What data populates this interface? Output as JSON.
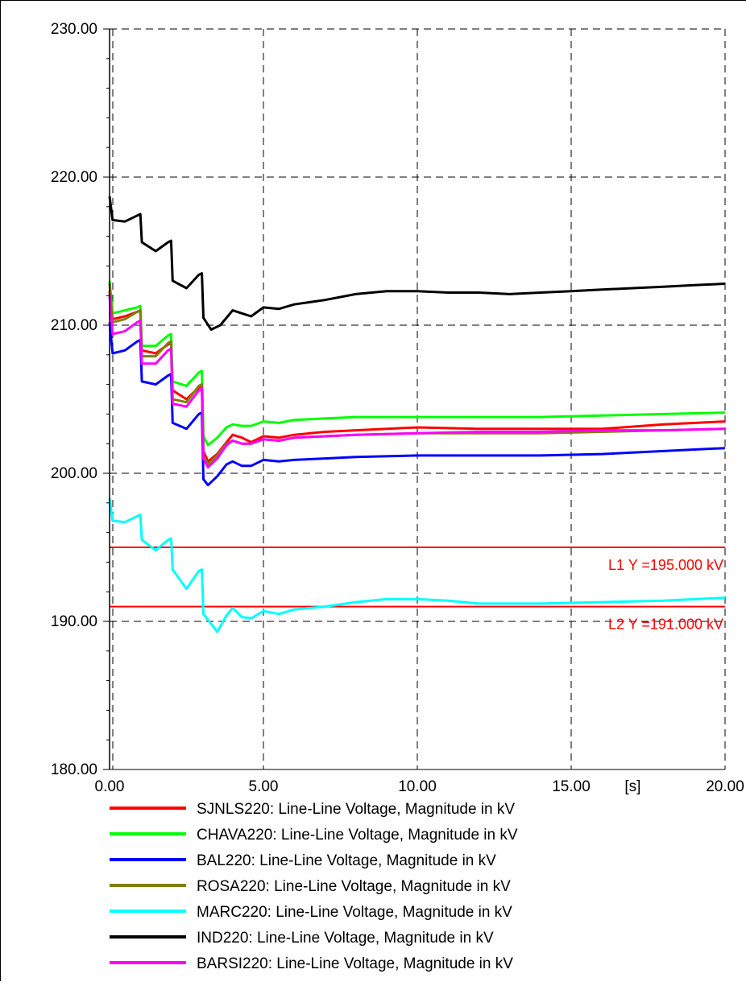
{
  "chart_data": {
    "type": "line",
    "xlabel": "",
    "x_unit_label": "[s]",
    "ylabel": "",
    "xlim": [
      0,
      20
    ],
    "ylim": [
      180,
      230
    ],
    "grid": true,
    "legend_position": "bottom",
    "x_ticks": [
      "0.00",
      "5.00",
      "10.00",
      "15.00",
      "20.00"
    ],
    "y_ticks": [
      "180.00",
      "190.00",
      "200.00",
      "210.00",
      "220.00",
      "230.00"
    ],
    "reference_lines": [
      {
        "y": 195,
        "label": "L1 Y =195.000 kV",
        "color": "#ff0000"
      },
      {
        "y": 191,
        "label": "L2 Y =191.000 kV",
        "color": "#ff0000"
      }
    ],
    "series": [
      {
        "name": "SJNLS220: Line-Line Voltage, Magnitude in kV",
        "color": "#ff0000",
        "points": [
          [
            0,
            212.3
          ],
          [
            0.1,
            210.4
          ],
          [
            0.5,
            210.6
          ],
          [
            0.9,
            210.9
          ],
          [
            1.0,
            211.0
          ],
          [
            1.05,
            208.3
          ],
          [
            1.5,
            208.1
          ],
          [
            1.9,
            208.7
          ],
          [
            2.0,
            208.8
          ],
          [
            2.05,
            205.6
          ],
          [
            2.5,
            205.0
          ],
          [
            2.9,
            205.8
          ],
          [
            3.0,
            205.9
          ],
          [
            3.05,
            201.5
          ],
          [
            3.2,
            200.8
          ],
          [
            3.5,
            201.3
          ],
          [
            3.8,
            202.1
          ],
          [
            4.0,
            202.6
          ],
          [
            4.3,
            202.4
          ],
          [
            4.6,
            202.1
          ],
          [
            5.0,
            202.5
          ],
          [
            5.5,
            202.4
          ],
          [
            6.0,
            202.6
          ],
          [
            7.0,
            202.8
          ],
          [
            8.0,
            202.9
          ],
          [
            10.0,
            203.1
          ],
          [
            12.0,
            203.0
          ],
          [
            14.0,
            203.0
          ],
          [
            16.0,
            203.0
          ],
          [
            18.0,
            203.3
          ],
          [
            20.0,
            203.5
          ]
        ]
      },
      {
        "name": "CHAVA220: Line-Line Voltage, Magnitude in kV",
        "color": "#00ff00",
        "points": [
          [
            0,
            213.0
          ],
          [
            0.1,
            210.8
          ],
          [
            0.5,
            211.0
          ],
          [
            0.9,
            211.2
          ],
          [
            1.0,
            211.3
          ],
          [
            1.05,
            208.6
          ],
          [
            1.5,
            208.6
          ],
          [
            1.9,
            209.3
          ],
          [
            2.0,
            209.4
          ],
          [
            2.05,
            206.2
          ],
          [
            2.5,
            205.9
          ],
          [
            2.9,
            206.8
          ],
          [
            3.0,
            206.9
          ],
          [
            3.05,
            202.5
          ],
          [
            3.2,
            201.9
          ],
          [
            3.5,
            202.4
          ],
          [
            3.8,
            203.1
          ],
          [
            4.0,
            203.3
          ],
          [
            4.3,
            203.2
          ],
          [
            4.6,
            203.2
          ],
          [
            5.0,
            203.5
          ],
          [
            5.5,
            203.4
          ],
          [
            6.0,
            203.6
          ],
          [
            7.0,
            203.7
          ],
          [
            8.0,
            203.8
          ],
          [
            10.0,
            203.8
          ],
          [
            12.0,
            203.8
          ],
          [
            14.0,
            203.8
          ],
          [
            16.0,
            203.9
          ],
          [
            18.0,
            204.0
          ],
          [
            20.0,
            204.1
          ]
        ]
      },
      {
        "name": "BAL220: Line-Line Voltage, Magnitude in kV",
        "color": "#0000ff",
        "points": [
          [
            0,
            210.2
          ],
          [
            0.1,
            208.1
          ],
          [
            0.5,
            208.3
          ],
          [
            0.9,
            208.9
          ],
          [
            1.0,
            209.0
          ],
          [
            1.05,
            206.2
          ],
          [
            1.5,
            206.0
          ],
          [
            1.9,
            206.6
          ],
          [
            2.0,
            206.7
          ],
          [
            2.05,
            203.4
          ],
          [
            2.5,
            203.0
          ],
          [
            2.9,
            204.0
          ],
          [
            3.0,
            204.1
          ],
          [
            3.05,
            199.6
          ],
          [
            3.2,
            199.2
          ],
          [
            3.5,
            199.8
          ],
          [
            3.8,
            200.6
          ],
          [
            4.0,
            200.8
          ],
          [
            4.3,
            200.5
          ],
          [
            4.6,
            200.5
          ],
          [
            5.0,
            200.9
          ],
          [
            5.5,
            200.8
          ],
          [
            6.0,
            200.9
          ],
          [
            7.0,
            201.0
          ],
          [
            8.0,
            201.1
          ],
          [
            10.0,
            201.2
          ],
          [
            12.0,
            201.2
          ],
          [
            14.0,
            201.2
          ],
          [
            16.0,
            201.3
          ],
          [
            18.0,
            201.5
          ],
          [
            20.0,
            201.7
          ]
        ]
      },
      {
        "name": "ROSA220: Line-Line Voltage, Magnitude in kV",
        "color": "#808000",
        "points": [
          [
            0,
            212.8
          ],
          [
            0.1,
            210.2
          ],
          [
            0.5,
            210.4
          ],
          [
            0.9,
            210.9
          ],
          [
            1.0,
            211.0
          ],
          [
            1.05,
            207.9
          ],
          [
            1.5,
            207.9
          ],
          [
            1.9,
            208.8
          ],
          [
            2.0,
            208.9
          ],
          [
            2.05,
            205.0
          ],
          [
            2.5,
            204.8
          ],
          [
            2.9,
            205.9
          ],
          [
            3.0,
            206.0
          ],
          [
            3.05,
            201.2
          ],
          [
            3.2,
            200.6
          ],
          [
            3.5,
            201.2
          ],
          [
            3.8,
            202.0
          ],
          [
            4.0,
            202.2
          ],
          [
            4.3,
            202.0
          ],
          [
            4.6,
            202.0
          ],
          [
            5.0,
            202.3
          ],
          [
            5.5,
            202.2
          ],
          [
            6.0,
            202.4
          ],
          [
            7.0,
            202.5
          ],
          [
            8.0,
            202.6
          ],
          [
            10.0,
            202.7
          ],
          [
            12.0,
            202.7
          ],
          [
            14.0,
            202.7
          ],
          [
            16.0,
            202.8
          ],
          [
            18.0,
            202.9
          ],
          [
            20.0,
            203.0
          ]
        ]
      },
      {
        "name": "MARC220: Line-Line Voltage, Magnitude in kV",
        "color": "#00ffff",
        "points": [
          [
            0,
            198.3
          ],
          [
            0.1,
            196.8
          ],
          [
            0.5,
            196.7
          ],
          [
            0.9,
            197.1
          ],
          [
            1.0,
            197.2
          ],
          [
            1.05,
            195.5
          ],
          [
            1.5,
            194.8
          ],
          [
            1.9,
            195.5
          ],
          [
            2.0,
            195.6
          ],
          [
            2.05,
            193.5
          ],
          [
            2.5,
            192.2
          ],
          [
            2.9,
            193.4
          ],
          [
            3.0,
            193.5
          ],
          [
            3.05,
            190.5
          ],
          [
            3.5,
            189.3
          ],
          [
            3.8,
            190.4
          ],
          [
            4.0,
            190.9
          ],
          [
            4.3,
            190.3
          ],
          [
            4.6,
            190.2
          ],
          [
            5.0,
            190.7
          ],
          [
            5.5,
            190.5
          ],
          [
            6.0,
            190.8
          ],
          [
            7.0,
            191.0
          ],
          [
            8.0,
            191.3
          ],
          [
            9.0,
            191.5
          ],
          [
            10.0,
            191.5
          ],
          [
            11.0,
            191.4
          ],
          [
            12.0,
            191.2
          ],
          [
            13.0,
            191.2
          ],
          [
            14.0,
            191.2
          ],
          [
            16.0,
            191.3
          ],
          [
            18.0,
            191.4
          ],
          [
            20.0,
            191.6
          ]
        ]
      },
      {
        "name": "IND220: Line-Line Voltage, Magnitude in kV",
        "color": "#000000",
        "points": [
          [
            0,
            218.7
          ],
          [
            0.1,
            217.1
          ],
          [
            0.5,
            217.0
          ],
          [
            0.9,
            217.4
          ],
          [
            1.0,
            217.5
          ],
          [
            1.05,
            215.6
          ],
          [
            1.5,
            215.0
          ],
          [
            1.9,
            215.6
          ],
          [
            2.0,
            215.7
          ],
          [
            2.05,
            213.0
          ],
          [
            2.5,
            212.5
          ],
          [
            2.9,
            213.4
          ],
          [
            3.0,
            213.5
          ],
          [
            3.05,
            210.5
          ],
          [
            3.3,
            209.7
          ],
          [
            3.6,
            210.0
          ],
          [
            4.0,
            211.0
          ],
          [
            4.3,
            210.8
          ],
          [
            4.6,
            210.6
          ],
          [
            5.0,
            211.2
          ],
          [
            5.5,
            211.1
          ],
          [
            6.0,
            211.4
          ],
          [
            7.0,
            211.7
          ],
          [
            8.0,
            212.1
          ],
          [
            9.0,
            212.3
          ],
          [
            10.0,
            212.3
          ],
          [
            11.0,
            212.2
          ],
          [
            12.0,
            212.2
          ],
          [
            13.0,
            212.1
          ],
          [
            14.0,
            212.2
          ],
          [
            15.0,
            212.3
          ],
          [
            16.0,
            212.4
          ],
          [
            17.0,
            212.5
          ],
          [
            18.0,
            212.6
          ],
          [
            19.0,
            212.7
          ],
          [
            20.0,
            212.8
          ]
        ]
      },
      {
        "name": "BARSI220: Line-Line Voltage, Magnitude in kV",
        "color": "#ff00ff",
        "points": [
          [
            0,
            212.0
          ],
          [
            0.1,
            209.4
          ],
          [
            0.5,
            209.6
          ],
          [
            0.9,
            210.2
          ],
          [
            1.0,
            210.3
          ],
          [
            1.05,
            207.4
          ],
          [
            1.5,
            207.4
          ],
          [
            1.9,
            208.3
          ],
          [
            2.0,
            208.4
          ],
          [
            2.05,
            204.7
          ],
          [
            2.5,
            204.5
          ],
          [
            2.9,
            205.6
          ],
          [
            3.0,
            205.7
          ],
          [
            3.05,
            201.0
          ],
          [
            3.2,
            200.4
          ],
          [
            3.5,
            201.0
          ],
          [
            3.8,
            201.9
          ],
          [
            4.0,
            202.2
          ],
          [
            4.3,
            202.0
          ],
          [
            4.6,
            202.0
          ],
          [
            5.0,
            202.3
          ],
          [
            5.5,
            202.2
          ],
          [
            6.0,
            202.4
          ],
          [
            7.0,
            202.5
          ],
          [
            8.0,
            202.6
          ],
          [
            10.0,
            202.7
          ],
          [
            12.0,
            202.8
          ],
          [
            14.0,
            202.8
          ],
          [
            16.0,
            202.9
          ],
          [
            18.0,
            202.9
          ],
          [
            20.0,
            203.0
          ]
        ]
      }
    ]
  }
}
